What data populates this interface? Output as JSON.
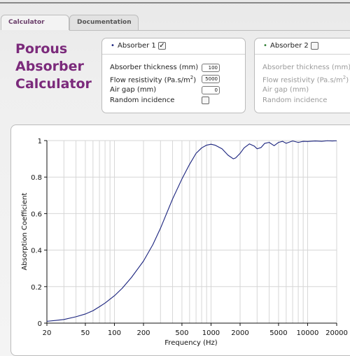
{
  "tabs": [
    {
      "label": "Calculator"
    },
    {
      "label": "Documentation"
    }
  ],
  "app_title": [
    "Porous",
    "Absorber",
    "Calculator"
  ],
  "absorber1": {
    "title": "Absorber 1",
    "bullet": "•",
    "checked": "✓",
    "thickness_label": "Absorber thickness (mm)",
    "thickness_value": "100",
    "flow_label": "Flow resistivity (Pa.s/m",
    "flow_sup": "2",
    "flow_close": ")",
    "flow_value": "5000",
    "gap_label": "Air gap (mm)",
    "gap_value": "0",
    "random_label": "Random incidence",
    "bullet_color": "#1a237e"
  },
  "absorber2": {
    "title": "Absorber 2",
    "bullet": "•",
    "thickness_label": "Absorber thickness (mm)",
    "flow_label": "Flow resistivity (Pa.s/m",
    "flow_sup": "2",
    "flow_close": ")",
    "gap_label": "Air gap (mm)",
    "random_label": "Random incidence",
    "bullet_color": "#2e7d32"
  },
  "chart_data": {
    "type": "line",
    "xlabel": "Frequency (Hz)",
    "ylabel": "Absorption Coefficient",
    "xscale": "log",
    "xlim": [
      20,
      20000
    ],
    "ylim": [
      0,
      1
    ],
    "xticks": [
      20,
      50,
      100,
      200,
      500,
      1000,
      2000,
      5000,
      10000,
      20000
    ],
    "yticks": [
      0,
      0.2,
      0.4,
      0.6,
      0.8,
      1
    ],
    "ytick_labels": [
      "0",
      "0.2",
      "0.4",
      "0.6",
      "0.8",
      "1"
    ],
    "grid": true,
    "series": [
      {
        "color": "#1a237e",
        "x": [
          20,
          25,
          30,
          40,
          50,
          60,
          70,
          80,
          100,
          120,
          150,
          200,
          250,
          300,
          400,
          500,
          600,
          700,
          800,
          900,
          1000,
          1100,
          1300,
          1500,
          1700,
          1800,
          2000,
          2200,
          2500,
          2800,
          3000,
          3300,
          3600,
          4000,
          4500,
          5000,
          5500,
          6000,
          6500,
          7000,
          8000,
          9000,
          10000,
          12000,
          14000,
          16000,
          18000,
          20000
        ],
        "y": [
          0.01,
          0.015,
          0.02,
          0.035,
          0.05,
          0.068,
          0.09,
          0.11,
          0.15,
          0.19,
          0.25,
          0.34,
          0.43,
          0.52,
          0.68,
          0.79,
          0.87,
          0.93,
          0.96,
          0.975,
          0.98,
          0.975,
          0.955,
          0.92,
          0.9,
          0.905,
          0.93,
          0.96,
          0.982,
          0.97,
          0.955,
          0.962,
          0.985,
          0.99,
          0.972,
          0.99,
          0.996,
          0.985,
          0.992,
          0.998,
          0.99,
          0.996,
          0.995,
          0.998,
          0.996,
          0.999,
          0.998,
          0.999
        ]
      }
    ]
  }
}
